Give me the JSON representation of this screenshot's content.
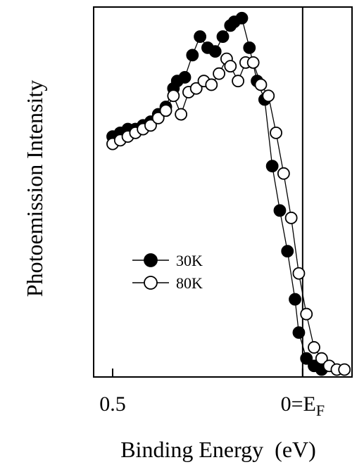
{
  "chart_data": {
    "type": "scatter",
    "xlabel": "Binding Energy  (eV)",
    "ylabel": "Photoemission Intensity",
    "x_reversed": true,
    "xlim": [
      0.55,
      -0.13
    ],
    "ylim": [
      0,
      1
    ],
    "xticks": [
      {
        "value": 0.5,
        "label": "0.5",
        "subscript": ""
      },
      {
        "value": 0.0,
        "label": "0=E",
        "subscript": "F"
      }
    ],
    "grid": false,
    "reference_line": {
      "x": 0.0
    },
    "legend": {
      "position": "middle-left"
    },
    "series": [
      {
        "name": "30K",
        "marker": "filled-circle",
        "color": "#000000",
        "points": [
          {
            "x": 0.5,
            "y": 0.65
          },
          {
            "x": 0.48,
            "y": 0.66
          },
          {
            "x": 0.46,
            "y": 0.67
          },
          {
            "x": 0.44,
            "y": 0.67
          },
          {
            "x": 0.42,
            "y": 0.68
          },
          {
            "x": 0.4,
            "y": 0.69
          },
          {
            "x": 0.38,
            "y": 0.71
          },
          {
            "x": 0.36,
            "y": 0.73
          },
          {
            "x": 0.34,
            "y": 0.78
          },
          {
            "x": 0.33,
            "y": 0.8
          },
          {
            "x": 0.31,
            "y": 0.81
          },
          {
            "x": 0.29,
            "y": 0.87
          },
          {
            "x": 0.27,
            "y": 0.92
          },
          {
            "x": 0.25,
            "y": 0.89
          },
          {
            "x": 0.23,
            "y": 0.88
          },
          {
            "x": 0.21,
            "y": 0.92
          },
          {
            "x": 0.19,
            "y": 0.95
          },
          {
            "x": 0.18,
            "y": 0.96
          },
          {
            "x": 0.16,
            "y": 0.97
          },
          {
            "x": 0.14,
            "y": 0.89
          },
          {
            "x": 0.12,
            "y": 0.8
          },
          {
            "x": 0.1,
            "y": 0.75
          },
          {
            "x": 0.08,
            "y": 0.57
          },
          {
            "x": 0.06,
            "y": 0.45
          },
          {
            "x": 0.04,
            "y": 0.34
          },
          {
            "x": 0.02,
            "y": 0.21
          },
          {
            "x": 0.01,
            "y": 0.12
          },
          {
            "x": -0.01,
            "y": 0.05
          },
          {
            "x": -0.03,
            "y": 0.03
          },
          {
            "x": -0.05,
            "y": 0.02
          }
        ]
      },
      {
        "name": "80K",
        "marker": "open-circle",
        "color": "#000000",
        "points": [
          {
            "x": 0.5,
            "y": 0.63
          },
          {
            "x": 0.48,
            "y": 0.64
          },
          {
            "x": 0.46,
            "y": 0.65
          },
          {
            "x": 0.44,
            "y": 0.66
          },
          {
            "x": 0.42,
            "y": 0.67
          },
          {
            "x": 0.4,
            "y": 0.68
          },
          {
            "x": 0.38,
            "y": 0.7
          },
          {
            "x": 0.36,
            "y": 0.72
          },
          {
            "x": 0.34,
            "y": 0.76
          },
          {
            "x": 0.32,
            "y": 0.71
          },
          {
            "x": 0.3,
            "y": 0.77
          },
          {
            "x": 0.28,
            "y": 0.78
          },
          {
            "x": 0.26,
            "y": 0.8
          },
          {
            "x": 0.24,
            "y": 0.79
          },
          {
            "x": 0.22,
            "y": 0.82
          },
          {
            "x": 0.2,
            "y": 0.86
          },
          {
            "x": 0.19,
            "y": 0.84
          },
          {
            "x": 0.17,
            "y": 0.8
          },
          {
            "x": 0.15,
            "y": 0.85
          },
          {
            "x": 0.13,
            "y": 0.85
          },
          {
            "x": 0.11,
            "y": 0.79
          },
          {
            "x": 0.09,
            "y": 0.76
          },
          {
            "x": 0.07,
            "y": 0.66
          },
          {
            "x": 0.05,
            "y": 0.55
          },
          {
            "x": 0.03,
            "y": 0.43
          },
          {
            "x": 0.01,
            "y": 0.28
          },
          {
            "x": -0.01,
            "y": 0.17
          },
          {
            "x": -0.03,
            "y": 0.08
          },
          {
            "x": -0.05,
            "y": 0.05
          },
          {
            "x": -0.07,
            "y": 0.03
          },
          {
            "x": -0.09,
            "y": 0.02
          },
          {
            "x": -0.11,
            "y": 0.02
          }
        ]
      }
    ]
  }
}
